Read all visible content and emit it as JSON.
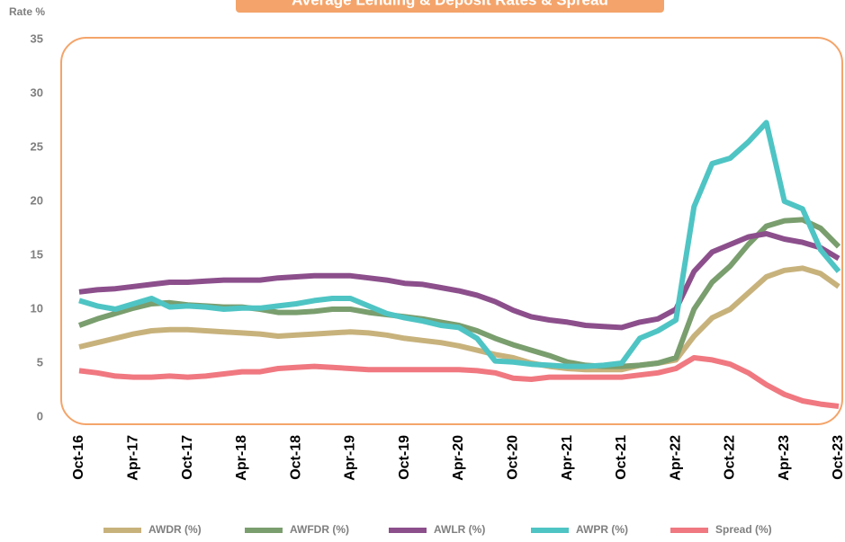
{
  "chart_data": {
    "type": "line",
    "title": "Average Lending & Deposit Rates & Spread",
    "y_label": "Rate %",
    "categories": [
      "Oct-16",
      null,
      null,
      "Apr-17",
      null,
      null,
      "Oct-17",
      null,
      null,
      "Apr-18",
      null,
      null,
      "Oct-18",
      null,
      null,
      "Apr-19",
      null,
      null,
      "Oct-19",
      null,
      null,
      "Apr-20",
      null,
      null,
      "Oct-20",
      null,
      null,
      "Apr-21",
      null,
      null,
      "Oct-21",
      null,
      null,
      "Apr-22",
      null,
      null,
      "Oct-22",
      null,
      null,
      "Apr-23",
      null,
      null,
      "Oct-23"
    ],
    "series": [
      {
        "name": "AWDR (%)",
        "color": "#c8b27c",
        "values": [
          7.0,
          7.4,
          7.8,
          8.2,
          8.5,
          8.6,
          8.6,
          8.5,
          8.4,
          8.3,
          8.2,
          8.0,
          8.1,
          8.2,
          8.3,
          8.4,
          8.3,
          8.1,
          7.8,
          7.6,
          7.4,
          7.1,
          6.7,
          6.3,
          6.0,
          5.5,
          5.2,
          5.0,
          4.9,
          4.9,
          4.9,
          5.3,
          5.5,
          5.8,
          8.0,
          9.7,
          10.5,
          12.0,
          13.5,
          14.1,
          14.3,
          13.8,
          12.6
        ]
      },
      {
        "name": "AWFDR (%)",
        "color": "#7a9e6e",
        "values": [
          9.0,
          9.6,
          10.1,
          10.6,
          11.0,
          11.1,
          10.9,
          10.8,
          10.7,
          10.7,
          10.5,
          10.2,
          10.2,
          10.3,
          10.5,
          10.5,
          10.2,
          10.0,
          9.8,
          9.6,
          9.3,
          9.0,
          8.5,
          7.8,
          7.2,
          6.7,
          6.2,
          5.6,
          5.3,
          5.2,
          5.2,
          5.3,
          5.5,
          6.0,
          10.5,
          13.0,
          14.5,
          16.5,
          18.2,
          18.7,
          18.8,
          18.0,
          16.3
        ]
      },
      {
        "name": "AWLR (%)",
        "color": "#8c4f8c",
        "values": [
          12.1,
          12.3,
          12.4,
          12.6,
          12.8,
          13.0,
          13.0,
          13.1,
          13.2,
          13.2,
          13.2,
          13.4,
          13.5,
          13.6,
          13.6,
          13.6,
          13.4,
          13.2,
          12.9,
          12.8,
          12.5,
          12.2,
          11.8,
          11.2,
          10.4,
          9.8,
          9.5,
          9.3,
          9.0,
          8.9,
          8.8,
          9.3,
          9.6,
          10.5,
          14.0,
          15.8,
          16.5,
          17.2,
          17.5,
          17.0,
          16.7,
          16.2,
          15.2
        ]
      },
      {
        "name": "AWPR (%)",
        "color": "#4fc4c4",
        "values": [
          11.3,
          10.8,
          10.5,
          11.0,
          11.5,
          10.7,
          10.8,
          10.7,
          10.5,
          10.6,
          10.6,
          10.8,
          11.0,
          11.3,
          11.5,
          11.5,
          10.8,
          10.1,
          9.7,
          9.4,
          9.0,
          8.8,
          7.8,
          5.7,
          5.6,
          5.4,
          5.3,
          5.2,
          5.2,
          5.3,
          5.5,
          7.8,
          8.5,
          9.5,
          20.0,
          24.0,
          24.5,
          26.0,
          27.8,
          20.5,
          19.8,
          16.0,
          14.0
        ]
      },
      {
        "name": "Spread (%)",
        "color": "#f07880",
        "values": [
          4.8,
          4.6,
          4.3,
          4.2,
          4.2,
          4.3,
          4.2,
          4.3,
          4.5,
          4.7,
          4.7,
          5.0,
          5.1,
          5.2,
          5.1,
          5.0,
          4.9,
          4.9,
          4.9,
          4.9,
          4.9,
          4.9,
          4.8,
          4.6,
          4.1,
          4.0,
          4.2,
          4.2,
          4.2,
          4.2,
          4.2,
          4.4,
          4.6,
          5.0,
          6.0,
          5.8,
          5.4,
          4.6,
          3.5,
          2.6,
          2.0,
          1.7,
          1.5
        ]
      }
    ],
    "ylim": [
      0,
      35
    ],
    "yticks": [
      0,
      5,
      10,
      15,
      20,
      25,
      30,
      35
    ],
    "grid": false,
    "legend": "bottom"
  }
}
